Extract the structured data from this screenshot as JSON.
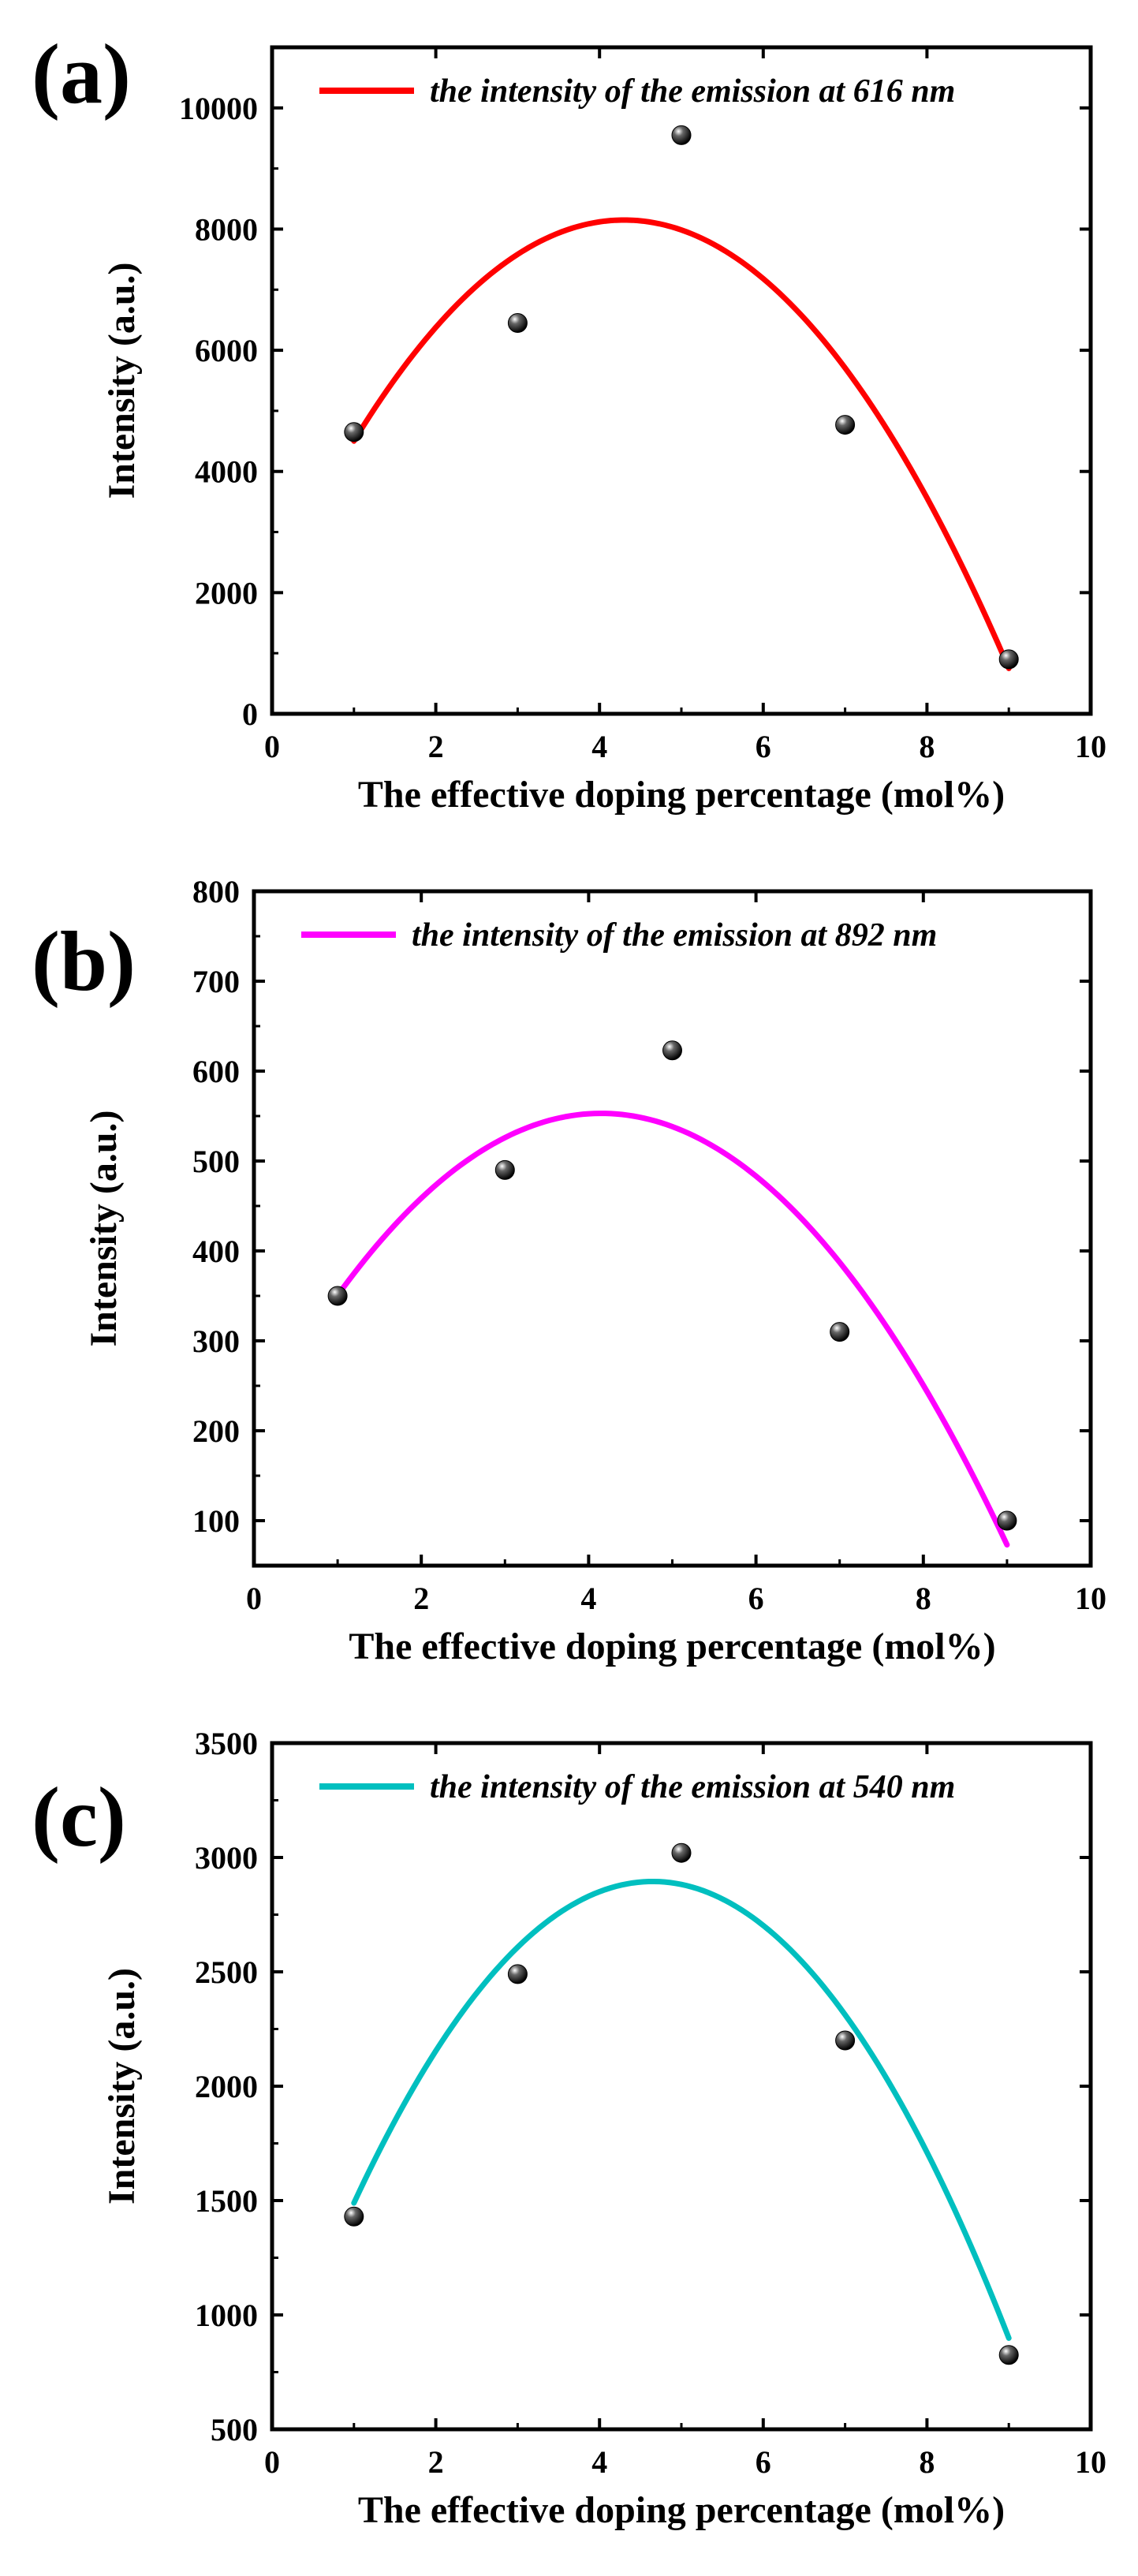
{
  "chart_data": [
    {
      "type": "scatter",
      "panel_label": "(a)",
      "title": "",
      "xlabel": "The effective doping percentage (mol%)",
      "ylabel": "Intensity (a.u.)",
      "xlim": [
        0,
        10
      ],
      "ylim": [
        0,
        11000
      ],
      "xticks": [
        0,
        2,
        4,
        6,
        8,
        10
      ],
      "yticks": [
        0,
        2000,
        4000,
        6000,
        8000,
        10000
      ],
      "x": [
        1,
        3,
        5,
        7,
        9
      ],
      "y": [
        4650,
        6450,
        9550,
        4770,
        900
      ],
      "fit": {
        "type": "quadratic",
        "x_range": [
          1,
          9
        ],
        "peak_x": 4.3,
        "peak_y": 8150,
        "a": -335,
        "color": "#ff0000"
      },
      "legend": "the intensity of the emission at 616 nm",
      "legend_position": "top"
    },
    {
      "type": "scatter",
      "panel_label": "(b)",
      "title": "",
      "xlabel": "The effective doping percentage (mol%)",
      "ylabel": "Intensity (a.u.)",
      "xlim": [
        0,
        10
      ],
      "ylim": [
        50,
        800
      ],
      "xticks": [
        0,
        2,
        4,
        6,
        8,
        10
      ],
      "yticks": [
        100,
        200,
        300,
        400,
        500,
        600,
        700,
        800
      ],
      "x": [
        1,
        3,
        5,
        7,
        9
      ],
      "y": [
        350,
        490,
        623,
        310,
        100
      ],
      "fit": {
        "type": "quadratic",
        "x_range": [
          1,
          9
        ],
        "peak_x": 4.15,
        "peak_y": 553,
        "a": -20.4,
        "color": "#ff00ff"
      },
      "legend": "the intensity of the emission at 892 nm",
      "legend_position": "top"
    },
    {
      "type": "scatter",
      "panel_label": "(c)",
      "title": "",
      "xlabel": "The effective doping percentage (mol%)",
      "ylabel": "Intensity (a.u.)",
      "xlim": [
        0,
        10
      ],
      "ylim": [
        500,
        3500
      ],
      "xticks": [
        0,
        2,
        4,
        6,
        8,
        10
      ],
      "yticks": [
        500,
        1000,
        1500,
        2000,
        2500,
        3000,
        3500
      ],
      "x": [
        1,
        3,
        5,
        7,
        9
      ],
      "y": [
        1430,
        2490,
        3020,
        2200,
        825
      ],
      "fit": {
        "type": "quadratic",
        "x_range": [
          1,
          9
        ],
        "peak_x": 4.65,
        "peak_y": 2895,
        "a": -105.5,
        "color": "#00bfbf"
      },
      "legend": "the intensity of the emission at 540 nm",
      "legend_position": "top"
    }
  ]
}
